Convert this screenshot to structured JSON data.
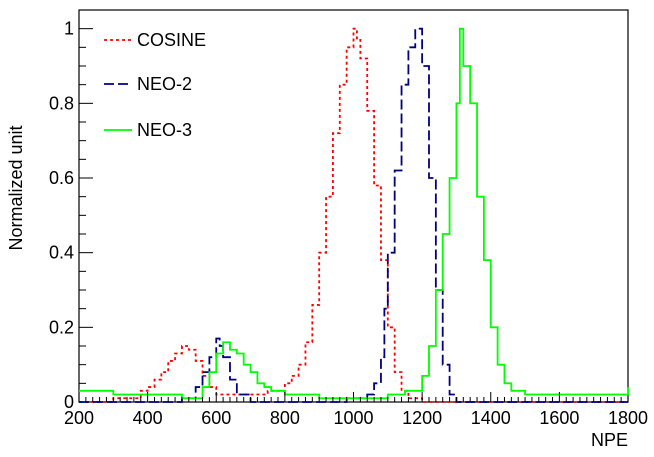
{
  "chart_data": {
    "type": "line",
    "title": "",
    "xlabel": "NPE",
    "ylabel": "Normalized unit",
    "xlim": [
      200,
      1800
    ],
    "ylim": [
      0,
      1.05
    ],
    "x_ticks": [
      200,
      400,
      600,
      800,
      1000,
      1200,
      1400,
      1600,
      1800
    ],
    "y_ticks": [
      0,
      0.2,
      0.4,
      0.6,
      0.8,
      1
    ],
    "y_tick_labels": [
      "0",
      "0.2",
      "0.4",
      "0.6",
      "0.8",
      "1"
    ],
    "grid": false,
    "legend_position": "top-left",
    "series": [
      {
        "name": "COSINE",
        "color": "#ff0000",
        "style": "dotted",
        "x": [
          200,
          250,
          300,
          350,
          380,
          400,
          420,
          440,
          460,
          480,
          500,
          520,
          540,
          560,
          580,
          600,
          620,
          650,
          700,
          750,
          800,
          820,
          840,
          860,
          880,
          900,
          920,
          940,
          960,
          980,
          1000,
          1010,
          1020,
          1040,
          1060,
          1080,
          1100,
          1120,
          1140,
          1160,
          1200,
          1300,
          1400,
          1500,
          1600,
          1700,
          1800
        ],
        "values": [
          0.0,
          0.0,
          0.01,
          0.01,
          0.03,
          0.04,
          0.06,
          0.08,
          0.11,
          0.13,
          0.15,
          0.14,
          0.11,
          0.07,
          0.04,
          0.02,
          0.02,
          0.02,
          0.02,
          0.03,
          0.05,
          0.07,
          0.1,
          0.16,
          0.26,
          0.4,
          0.55,
          0.72,
          0.85,
          0.95,
          1.0,
          0.97,
          0.92,
          0.78,
          0.58,
          0.38,
          0.2,
          0.08,
          0.03,
          0.01,
          0.0,
          0.0,
          0.0,
          0.0,
          0.0,
          0.0,
          0.0
        ]
      },
      {
        "name": "NEO-2",
        "color": "#000080",
        "style": "dashed",
        "x": [
          200,
          450,
          500,
          540,
          560,
          580,
          600,
          610,
          620,
          640,
          660,
          700,
          800,
          900,
          980,
          1040,
          1060,
          1080,
          1090,
          1100,
          1120,
          1140,
          1160,
          1180,
          1200,
          1220,
          1240,
          1260,
          1280,
          1300,
          1400,
          1600,
          1800
        ],
        "values": [
          0.0,
          0.0,
          0.01,
          0.04,
          0.08,
          0.12,
          0.17,
          0.15,
          0.12,
          0.06,
          0.02,
          0.0,
          0.0,
          0.0,
          0.01,
          0.02,
          0.05,
          0.12,
          0.25,
          0.4,
          0.62,
          0.85,
          0.95,
          1.0,
          0.9,
          0.6,
          0.3,
          0.1,
          0.02,
          0.0,
          0.0,
          0.0,
          0.0
        ]
      },
      {
        "name": "NEO-3",
        "color": "#00ff00",
        "style": "solid",
        "x": [
          200,
          300,
          400,
          500,
          560,
          580,
          600,
          620,
          640,
          660,
          680,
          700,
          720,
          740,
          760,
          800,
          900,
          1000,
          1100,
          1150,
          1200,
          1220,
          1240,
          1260,
          1280,
          1300,
          1310,
          1320,
          1340,
          1360,
          1380,
          1400,
          1420,
          1440,
          1460,
          1500,
          1600,
          1700,
          1780,
          1800
        ],
        "values": [
          0.03,
          0.02,
          0.02,
          0.01,
          0.04,
          0.08,
          0.13,
          0.16,
          0.14,
          0.13,
          0.1,
          0.08,
          0.05,
          0.04,
          0.03,
          0.02,
          0.01,
          0.01,
          0.02,
          0.03,
          0.07,
          0.15,
          0.3,
          0.45,
          0.6,
          0.8,
          1.0,
          0.9,
          0.8,
          0.55,
          0.38,
          0.2,
          0.1,
          0.05,
          0.03,
          0.02,
          0.02,
          0.02,
          0.02,
          0.04
        ]
      }
    ]
  }
}
